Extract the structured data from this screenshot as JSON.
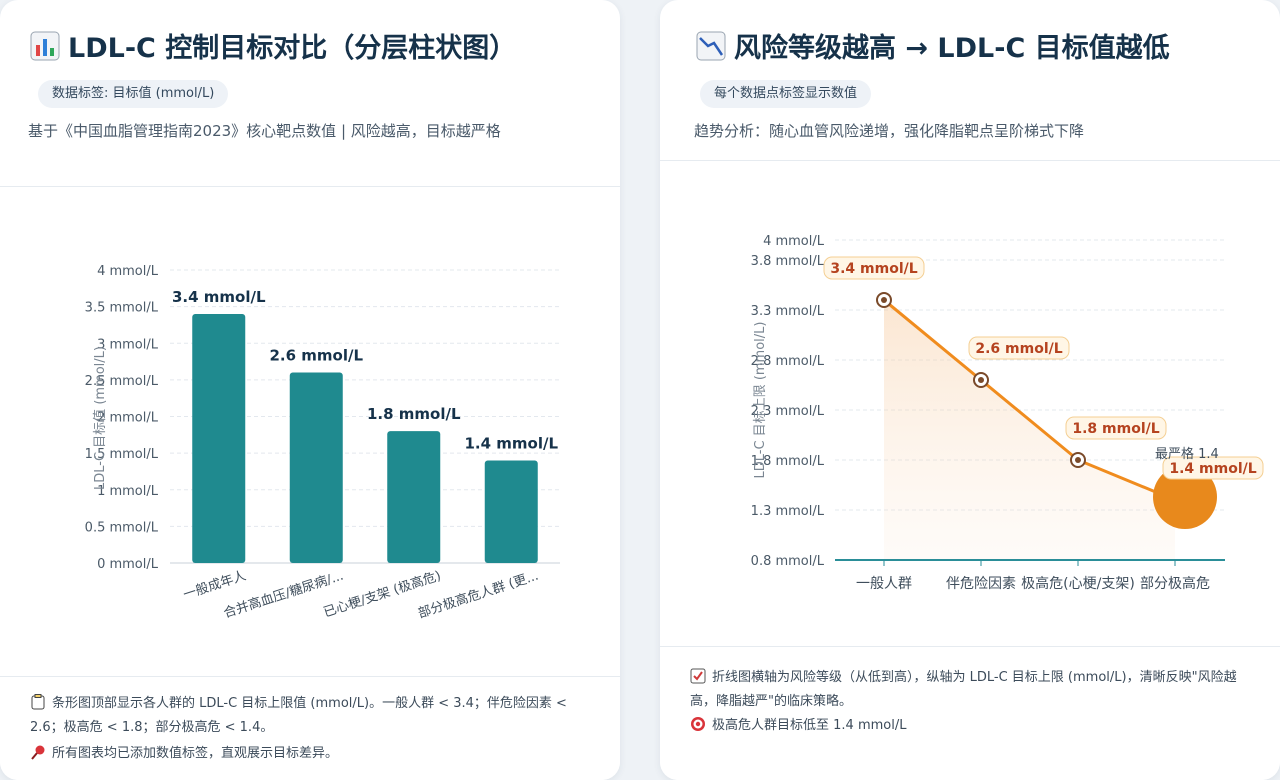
{
  "left": {
    "title": "LDL-C 控制目标对比（分层柱状图）",
    "title_icon": "bar-chart-icon",
    "chip": "数据标签: 目标值 (mmol/L)",
    "subtitle": "基于《中国血脂管理指南2023》核心靶点数值 | 风险越高，目标越严格",
    "note1": "条形图顶部显示各人群的 LDL-C 目标上限值 (mmol/L)。一般人群 < 3.4；伴危险因素 < 2.6；极高危 < 1.8；部分极高危 < 1.4。",
    "note1_icon": "clipboard-icon",
    "note2": "所有图表均已添加数值标签，直观展示目标差异。",
    "note2_icon": "pin-icon"
  },
  "right": {
    "title": "风险等级越高 → LDL-C 目标值越低",
    "title_icon": "line-chart-icon",
    "chip": "每个数据点标签显示数值",
    "subtitle": "趋势分析：随心血管风险递增，强化降脂靶点呈阶梯式下降",
    "note1": "折线图横轴为风险等级（从低到高），纵轴为 LDL-C 目标上限 (mmol/L)，清晰反映\"风险越高，降脂越严\"的临床策略。",
    "note1_icon": "checkbox-icon",
    "note2": "极高危人群目标低至 1.4 mmol/L",
    "note2_icon": "target-icon"
  },
  "chart_data": [
    {
      "type": "bar",
      "categories": [
        "一般成年人",
        "合并高血压/糖尿病/...",
        "已心梗/支架 (极高危)",
        "部分极高危人群 (更..."
      ],
      "values": [
        3.4,
        2.6,
        1.8,
        1.4
      ],
      "value_labels": [
        "3.4 mmol/L",
        "2.6 mmol/L",
        "1.8 mmol/L",
        "1.4 mmol/L"
      ],
      "ylabel": "LDL-C 目标值 (mmol/L)",
      "ylim": [
        0,
        4
      ],
      "yticks": [
        0,
        0.5,
        1,
        1.5,
        2,
        2.5,
        3,
        3.5,
        4
      ],
      "ytick_labels": [
        "0 mmol/L",
        "0.5 mmol/L",
        "1 mmol/L",
        "1.5 mmol/L",
        "2 mmol/L",
        "2.5 mmol/L",
        "3 mmol/L",
        "3.5 mmol/L",
        "4 mmol/L"
      ],
      "grid": true,
      "color": "#1f8a8f"
    },
    {
      "type": "line",
      "categories": [
        "一般人群",
        "伴危险因素",
        "极高危(心梗/支架)",
        "部分极高危"
      ],
      "values": [
        3.4,
        2.6,
        1.8,
        1.4
      ],
      "value_labels": [
        "3.4 mmol/L",
        "2.6 mmol/L",
        "1.8 mmol/L",
        "1.4 mmol/L"
      ],
      "ylabel": "LDL-C 目标上限 (mmol/L)",
      "ylim": [
        0.8,
        4
      ],
      "yticks": [
        0.8,
        1.3,
        1.8,
        2.3,
        2.8,
        3.3,
        3.8,
        4
      ],
      "ytick_labels": [
        "0.8 mmol/L",
        "1.3 mmol/L",
        "1.8 mmol/L",
        "2.3 mmol/L",
        "2.8 mmol/L",
        "3.3 mmol/L",
        "3.8 mmol/L",
        "4 mmol/L"
      ],
      "annotation": "最严格 1.4",
      "grid": true,
      "color": "#f08c1e",
      "marker_color": "#e8891c"
    }
  ]
}
